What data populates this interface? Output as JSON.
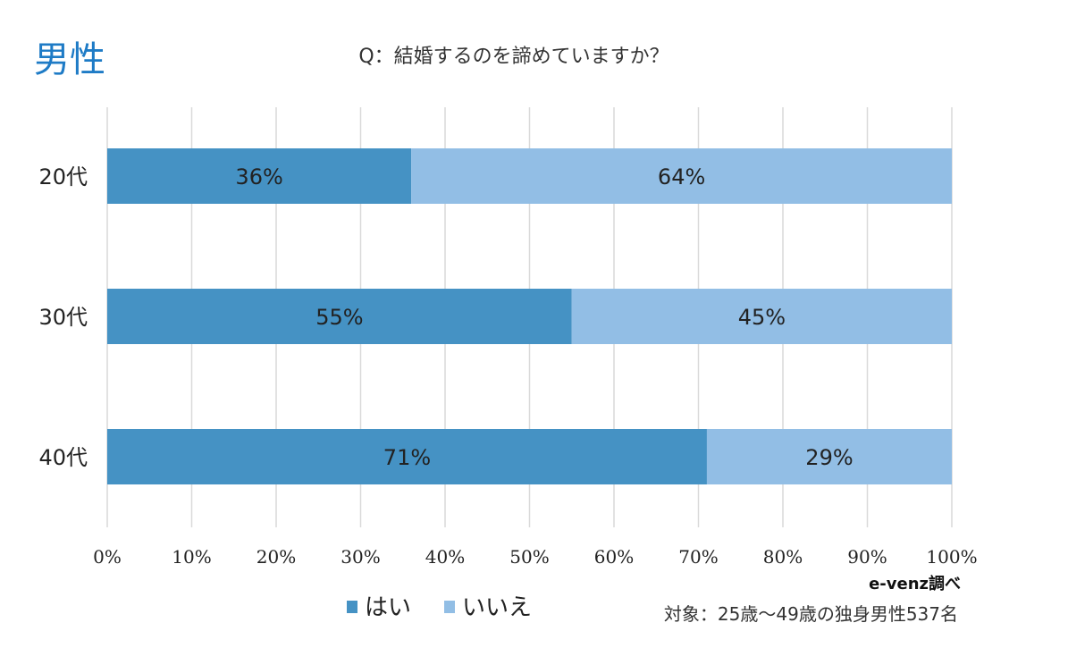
{
  "chart_data": {
    "type": "bar",
    "orientation": "horizontal",
    "stacked": true,
    "heading": "男性",
    "title": "Q：結婚するのを諦めていますか？",
    "categories": [
      "20代",
      "30代",
      "40代"
    ],
    "series": [
      {
        "name": "はい",
        "values": [
          36,
          55,
          71
        ],
        "color": "#4592C4",
        "labels": [
          "36%",
          "55%",
          "71%"
        ]
      },
      {
        "name": "いいえ",
        "values": [
          64,
          45,
          29
        ],
        "color": "#92BEE5",
        "labels": [
          "64%",
          "45%",
          "29%"
        ]
      }
    ],
    "xlim": [
      0,
      100
    ],
    "xticks": [
      "0%",
      "10%",
      "20%",
      "30%",
      "40%",
      "50%",
      "60%",
      "70%",
      "80%",
      "90%",
      "100%"
    ],
    "grid": true,
    "legend_position": "bottom",
    "source": "e-venz調べ",
    "note": "対象：25歳〜49歳の独身男性537名",
    "heading_color": "#1E7BC6"
  }
}
